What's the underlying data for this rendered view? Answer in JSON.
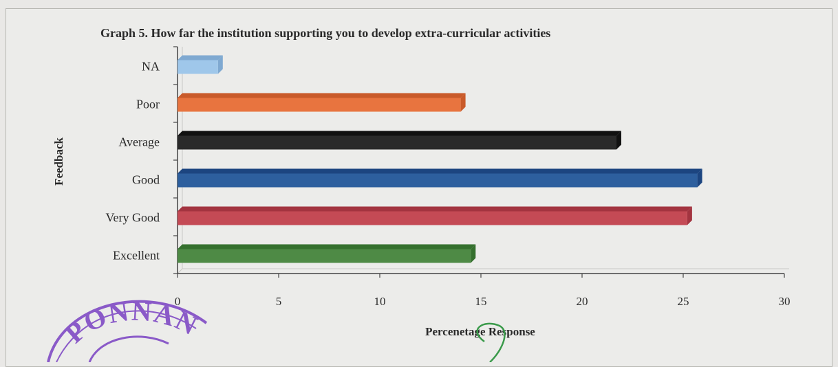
{
  "chart_data": {
    "type": "bar",
    "orientation": "horizontal",
    "title": "Graph 5. How far the institution supporting you to develop extra-curricular activities",
    "xlabel": "Percenetage Response",
    "ylabel": "Feedback",
    "categories": [
      "NA",
      "Poor",
      "Average",
      "Good",
      "Very Good",
      "Excellent"
    ],
    "values": [
      2,
      14,
      21.7,
      25.7,
      25.2,
      14.5
    ],
    "xlim": [
      0,
      30
    ],
    "xticks": [
      "0",
      "5",
      "10",
      "15",
      "20",
      "25",
      "30"
    ],
    "grid": false,
    "bar_colors": [
      "#9fc7ea",
      "#e8743f",
      "#2a2a2a",
      "#2d5f9e",
      "#c44a55",
      "#4e8a45"
    ],
    "bar_top_colors": [
      "#7fa9d1",
      "#c95a2a",
      "#111111",
      "#1c4580",
      "#a33440",
      "#35702e"
    ]
  },
  "seal": {
    "text": "PONNANI COL",
    "color": "#8a5ac8"
  },
  "annotation_mark": {
    "color": "#3a9a4a"
  }
}
